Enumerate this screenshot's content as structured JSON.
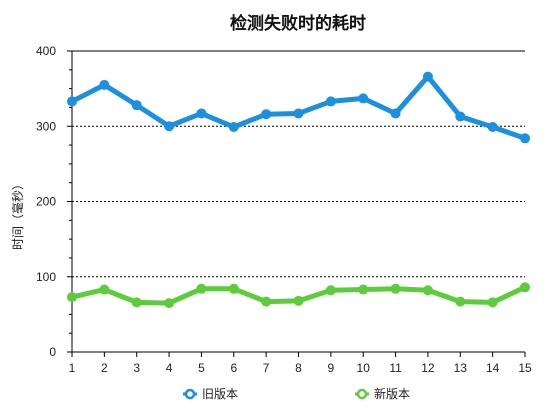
{
  "chart_data": {
    "type": "line",
    "title": "检测失败时的耗时",
    "xlabel": "",
    "ylabel": "时间（毫秒）",
    "x": [
      1,
      2,
      3,
      4,
      5,
      6,
      7,
      8,
      9,
      10,
      11,
      12,
      13,
      14,
      15
    ],
    "x_tick_labels": [
      "1",
      "2",
      "3",
      "4",
      "5",
      "6",
      "7",
      "8",
      "9",
      "10",
      "11",
      "12",
      "13",
      "14",
      "15"
    ],
    "ylim": [
      0,
      400
    ],
    "y_ticks": [
      0,
      100,
      200,
      300,
      400
    ],
    "y_tick_labels": [
      "0",
      "100",
      "200",
      "300",
      "400"
    ],
    "grid": "horizontal dotted at 100, 200, 300",
    "legend_placement": "bottom",
    "series": [
      {
        "name": "旧版本",
        "color": "#1b8fe0",
        "values": [
          333,
          355,
          328,
          300,
          317,
          299,
          316,
          317,
          333,
          337,
          317,
          366,
          313,
          299,
          284
        ]
      },
      {
        "name": "新版本",
        "color": "#5dcc3a",
        "values": [
          73,
          83,
          66,
          65,
          84,
          84,
          67,
          68,
          82,
          83,
          84,
          82,
          67,
          66,
          86
        ]
      }
    ]
  }
}
